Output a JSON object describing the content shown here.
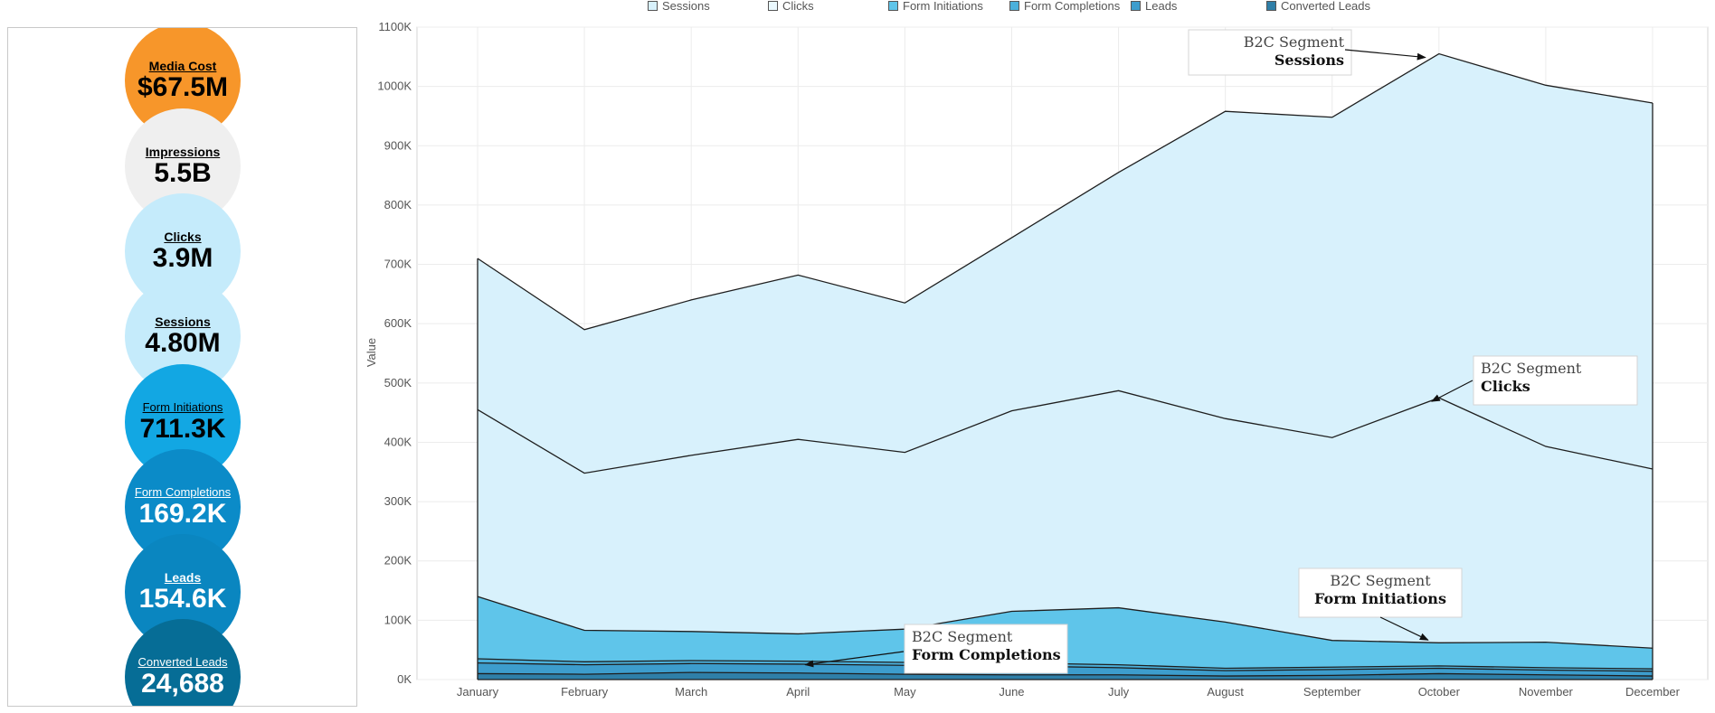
{
  "kpis": [
    {
      "label": "Media Cost",
      "value": "$67.5M",
      "color": "#f7962a",
      "text_color": "#000000"
    },
    {
      "label": "Impressions",
      "value": "5.5B",
      "color": "#efefef",
      "text_color": "#000000"
    },
    {
      "label": "Clicks",
      "value": "3.9M",
      "color": "#c5ebfb",
      "text_color": "#000000"
    },
    {
      "label": "Sessions",
      "value": "4.80M",
      "color": "#c5ebfb",
      "text_color": "#000000"
    },
    {
      "label": "Form Initiations",
      "value": "711.3K",
      "color": "#12a7e3",
      "text_color": "#000000"
    },
    {
      "label": "Form Completions",
      "value": "169.2K",
      "color": "#0b8bc8",
      "text_color": "#ffffff"
    },
    {
      "label": "Leads",
      "value": "154.6K",
      "color": "#0a86c0",
      "text_color": "#ffffff"
    },
    {
      "label": "Converted Leads",
      "value": "24,688",
      "color": "#066d96",
      "text_color": "#ffffff"
    }
  ],
  "legend": [
    {
      "label": "Sessions",
      "color": "#d8f1fc"
    },
    {
      "label": "Clicks",
      "color": "#eaf8fe"
    },
    {
      "label": "Form Initiations",
      "color": "#5fc5ea"
    },
    {
      "label": "Form Completions",
      "color": "#4bb0db"
    },
    {
      "label": "Leads",
      "color": "#3d9dcd"
    },
    {
      "label": "Converted Leads",
      "color": "#2f7fa8"
    }
  ],
  "chart_data": {
    "type": "area",
    "ylabel": "Value",
    "xlabel": "",
    "ylim": [
      0,
      1100000
    ],
    "yticks": [
      0,
      100000,
      200000,
      300000,
      400000,
      500000,
      600000,
      700000,
      800000,
      900000,
      1000000,
      1100000
    ],
    "ytick_labels": [
      "0K",
      "100K",
      "200K",
      "300K",
      "400K",
      "500K",
      "600K",
      "700K",
      "800K",
      "900K",
      "1000K",
      "1100K"
    ],
    "grid": true,
    "categories": [
      "January",
      "February",
      "March",
      "April",
      "May",
      "June",
      "July",
      "August",
      "September",
      "October",
      "November",
      "December"
    ],
    "series": [
      {
        "name": "Sessions",
        "values": [
          710000,
          590000,
          640000,
          682000,
          635000,
          745000,
          855000,
          958000,
          948000,
          1055000,
          1002000,
          972000
        ],
        "color": "#d8f1fc"
      },
      {
        "name": "Clicks",
        "values": [
          455000,
          348000,
          378000,
          405000,
          383000,
          453000,
          487000,
          440000,
          408000,
          475000,
          393000,
          355000
        ],
        "color": "#d8f1fc"
      },
      {
        "name": "Form Initiations",
        "values": [
          140000,
          83000,
          81000,
          77000,
          85000,
          115000,
          121000,
          97000,
          66000,
          62000,
          63000,
          53000
        ],
        "color": "#5fc5ea"
      },
      {
        "name": "Form Completions",
        "values": [
          35000,
          30000,
          32000,
          31000,
          29000,
          28000,
          25000,
          19000,
          21000,
          23000,
          20000,
          18000
        ],
        "color": "#4bb0db"
      },
      {
        "name": "Leads",
        "values": [
          28000,
          25000,
          27000,
          26000,
          24000,
          23000,
          20000,
          15000,
          17000,
          19000,
          16000,
          14000
        ],
        "color": "#3d9dcd"
      },
      {
        "name": "Converted Leads",
        "values": [
          10000,
          9000,
          12000,
          11000,
          9000,
          8000,
          8000,
          6000,
          7000,
          10000,
          8000,
          6000
        ],
        "color": "#2f7fa8"
      }
    ],
    "annotations": [
      {
        "line1": "B2C Segment",
        "line2": "Sessions",
        "target_month": "October",
        "target_value": 1055000
      },
      {
        "line1": "B2C Segment",
        "line2": "Clicks",
        "target_month": "October",
        "target_value": 475000
      },
      {
        "line1": "B2C Segment",
        "line2": "Form Initiations",
        "target_month": "October",
        "target_value": 62000
      },
      {
        "line1": "B2C Segment",
        "line2": "Form Completions",
        "target_month": "April",
        "target_value": 31000
      }
    ]
  }
}
